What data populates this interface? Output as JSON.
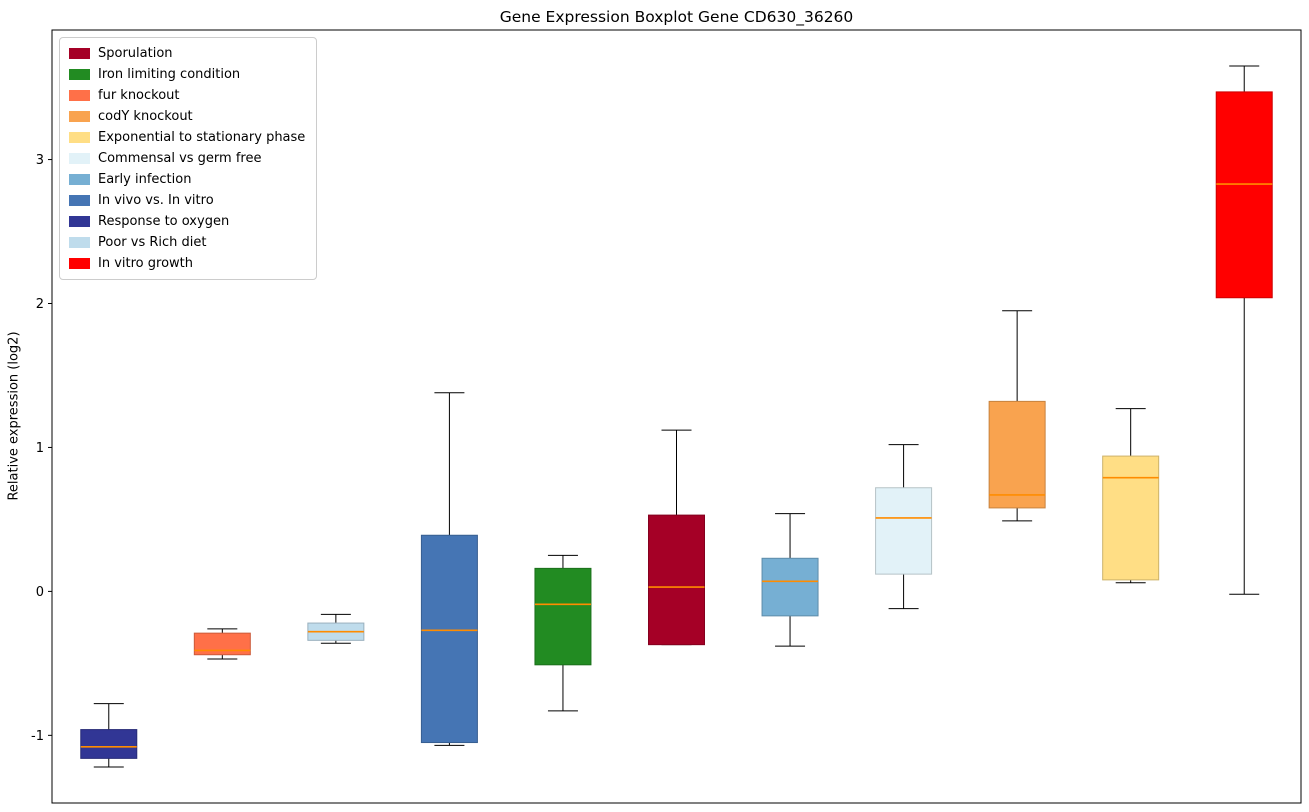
{
  "chart_data": {
    "type": "boxplot",
    "title": "Gene Expression Boxplot Gene CD630_36260",
    "ylabel": "Relative expression (log2)",
    "ylim": [
      -1.47,
      3.9
    ],
    "yticks": [
      -1,
      0,
      1,
      2,
      3
    ],
    "grid": false,
    "legend_position": "upper left",
    "median_color": "#FF8C00",
    "whisker_color": "#000000",
    "series": [
      {
        "name": "Response to oxygen",
        "color": "#313695",
        "whisker_low": -1.22,
        "q1": -1.16,
        "median": -1.08,
        "q3": -0.96,
        "whisker_high": -0.78
      },
      {
        "name": "fur knockout",
        "color": "#FF7048",
        "whisker_low": -0.47,
        "q1": -0.44,
        "median": -0.41,
        "q3": -0.29,
        "whisker_high": -0.26
      },
      {
        "name": "Poor vs Rich diet",
        "color": "#BFDCEC",
        "whisker_low": -0.36,
        "q1": -0.34,
        "median": -0.28,
        "q3": -0.22,
        "whisker_high": -0.16
      },
      {
        "name": "In vivo vs. In vitro",
        "color": "#4575B4",
        "whisker_low": -1.07,
        "q1": -1.05,
        "median": -0.27,
        "q3": 0.39,
        "whisker_high": 1.38
      },
      {
        "name": "Iron limiting condition",
        "color": "#228B22",
        "whisker_low": -0.83,
        "q1": -0.51,
        "median": -0.09,
        "q3": 0.16,
        "whisker_high": 0.25
      },
      {
        "name": "Sporulation",
        "color": "#A50026",
        "whisker_low": -0.37,
        "q1": -0.37,
        "median": 0.03,
        "q3": 0.53,
        "whisker_high": 1.12
      },
      {
        "name": "Early infection",
        "color": "#76AFD3",
        "whisker_low": -0.38,
        "q1": -0.17,
        "median": 0.07,
        "q3": 0.23,
        "whisker_high": 0.54
      },
      {
        "name": "Commensal vs germ free",
        "color": "#E2F2F8",
        "whisker_low": -0.12,
        "q1": 0.12,
        "median": 0.51,
        "q3": 0.72,
        "whisker_high": 1.02
      },
      {
        "name": "codY knockout",
        "color": "#F9A34F",
        "whisker_low": 0.49,
        "q1": 0.58,
        "median": 0.67,
        "q3": 1.32,
        "whisker_high": 1.95
      },
      {
        "name": "Exponential to stationary phase",
        "color": "#FFDE85",
        "whisker_low": 0.06,
        "q1": 0.08,
        "median": 0.79,
        "q3": 0.94,
        "whisker_high": 1.27
      },
      {
        "name": "In vitro growth",
        "color": "#FF0000",
        "whisker_low": -0.02,
        "q1": 2.04,
        "median": 2.83,
        "q3": 3.47,
        "whisker_high": 3.65
      }
    ],
    "legend": [
      {
        "label": "Sporulation",
        "color": "#A50026"
      },
      {
        "label": "Iron limiting condition",
        "color": "#228B22"
      },
      {
        "label": "fur knockout",
        "color": "#FF7048"
      },
      {
        "label": "codY knockout",
        "color": "#F9A34F"
      },
      {
        "label": "Exponential to stationary phase",
        "color": "#FFDE85"
      },
      {
        "label": "Commensal vs germ free",
        "color": "#E2F2F8"
      },
      {
        "label": "Early infection",
        "color": "#76AFD3"
      },
      {
        "label": "In vivo vs. In vitro",
        "color": "#4575B4"
      },
      {
        "label": "Response to oxygen",
        "color": "#313695"
      },
      {
        "label": "Poor vs Rich diet",
        "color": "#BFDCEC"
      },
      {
        "label": "In vitro growth",
        "color": "#FF0000"
      }
    ]
  }
}
